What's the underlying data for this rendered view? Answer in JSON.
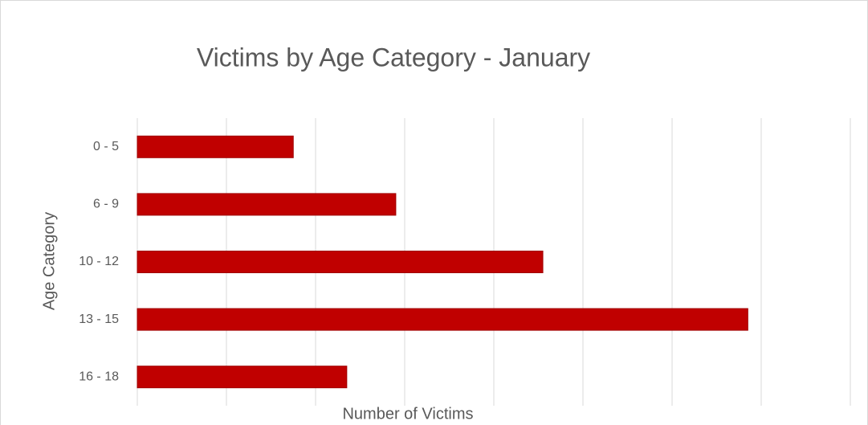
{
  "chart_data": {
    "type": "hbar",
    "title": "Victims by Age Category - January",
    "x_label": "Number of Victims",
    "y_label": "Age Category",
    "categories": [
      "0 - 5",
      "6 - 9",
      "10 - 12",
      "13 - 15",
      "16 - 18"
    ],
    "values": [
      1.75,
      2.9,
      4.55,
      6.85,
      2.35
    ],
    "color": "#c00000",
    "xlim": [
      0,
      8
    ],
    "xticks": [
      0,
      1,
      2,
      3,
      4,
      5,
      6,
      7,
      8
    ],
    "grid": true
  }
}
